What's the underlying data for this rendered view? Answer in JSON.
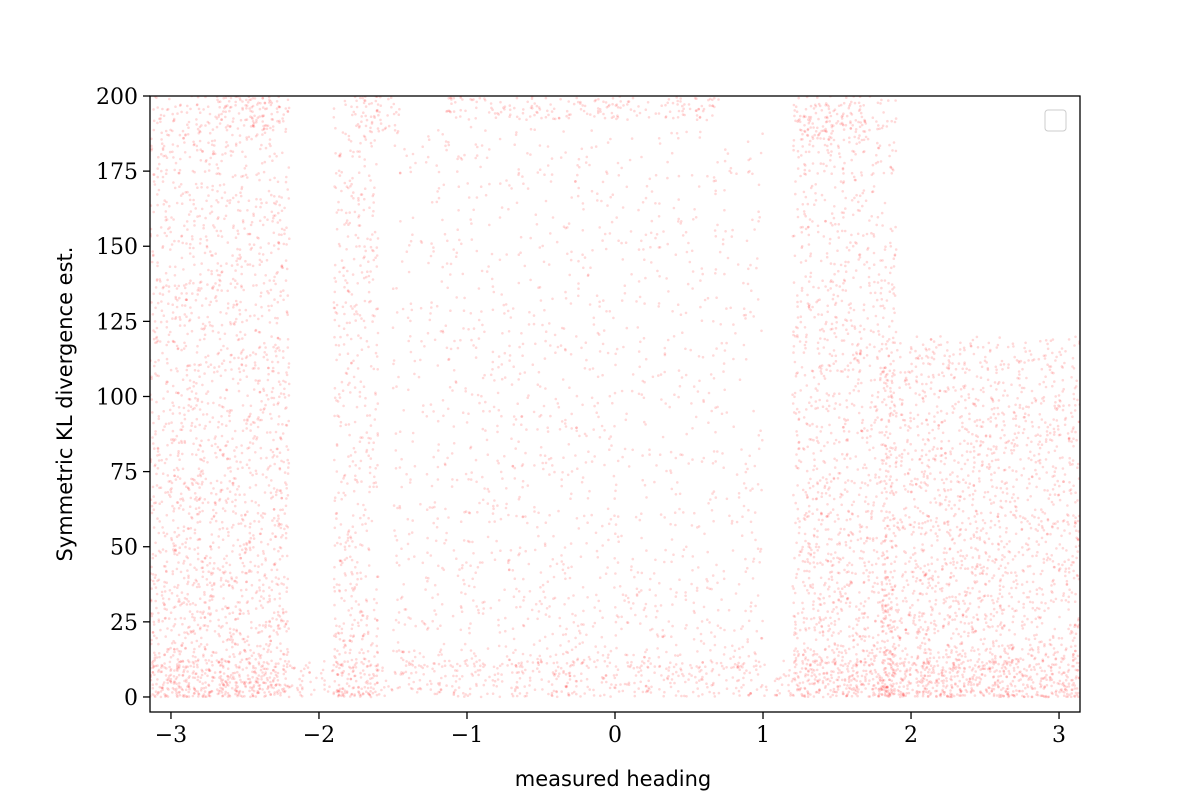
{
  "chart_data": {
    "type": "scatter",
    "title": "",
    "xlabel": "measured heading",
    "ylabel": "Symmetric KL divergence est.",
    "xlim": [
      -3.1416,
      3.1416
    ],
    "ylim": [
      -5,
      200
    ],
    "xticks": [
      -3,
      -2,
      -1,
      0,
      1,
      2,
      3
    ],
    "xtick_labels": [
      "−3",
      "−2",
      "−1",
      "0",
      "1",
      "2",
      "3"
    ],
    "yticks": [
      0,
      25,
      50,
      75,
      100,
      125,
      150,
      175,
      200
    ],
    "ytick_labels": [
      "0",
      "25",
      "50",
      "75",
      "100",
      "125",
      "150",
      "175",
      "200"
    ],
    "grid": false,
    "legend": {
      "placement": "top-right",
      "entries": []
    },
    "series": [
      {
        "color": "#ff0000",
        "alpha": 0.15,
        "marker": "point",
        "density_profile": {
          "description_free_note": "",
          "bands": [
            {
              "x_range": [
                -3.14,
                -2.2
              ],
              "y_range": [
                0,
                200
              ],
              "relative_density": 0.9
            },
            {
              "x_range": [
                -2.7,
                -2.2
              ],
              "y_range": [
                188,
                200
              ],
              "relative_density": 1.0
            },
            {
              "x_range": [
                -1.9,
                -1.6
              ],
              "y_range": [
                0,
                200
              ],
              "relative_density": 0.7
            },
            {
              "x_range": [
                -1.75,
                -1.45
              ],
              "y_range": [
                188,
                200
              ],
              "relative_density": 1.0
            },
            {
              "x_range": [
                -1.15,
                0.7
              ],
              "y_range": [
                192,
                200
              ],
              "relative_density": 1.0
            },
            {
              "x_range": [
                -1.5,
                1.0
              ],
              "y_range": [
                10,
                190
              ],
              "relative_density": 0.25
            },
            {
              "x_range": [
                -3.14,
                3.14
              ],
              "y_range": [
                0,
                12
              ],
              "relative_density": 1.0
            },
            {
              "x_range": [
                1.2,
                1.9
              ],
              "y_range": [
                0,
                200
              ],
              "relative_density": 0.8
            },
            {
              "x_range": [
                1.2,
                1.7
              ],
              "y_range": [
                185,
                200
              ],
              "relative_density": 1.0
            },
            {
              "x_range": [
                1.8,
                3.14
              ],
              "y_range": [
                0,
                120
              ],
              "relative_density": 1.0
            }
          ]
        }
      }
    ]
  }
}
